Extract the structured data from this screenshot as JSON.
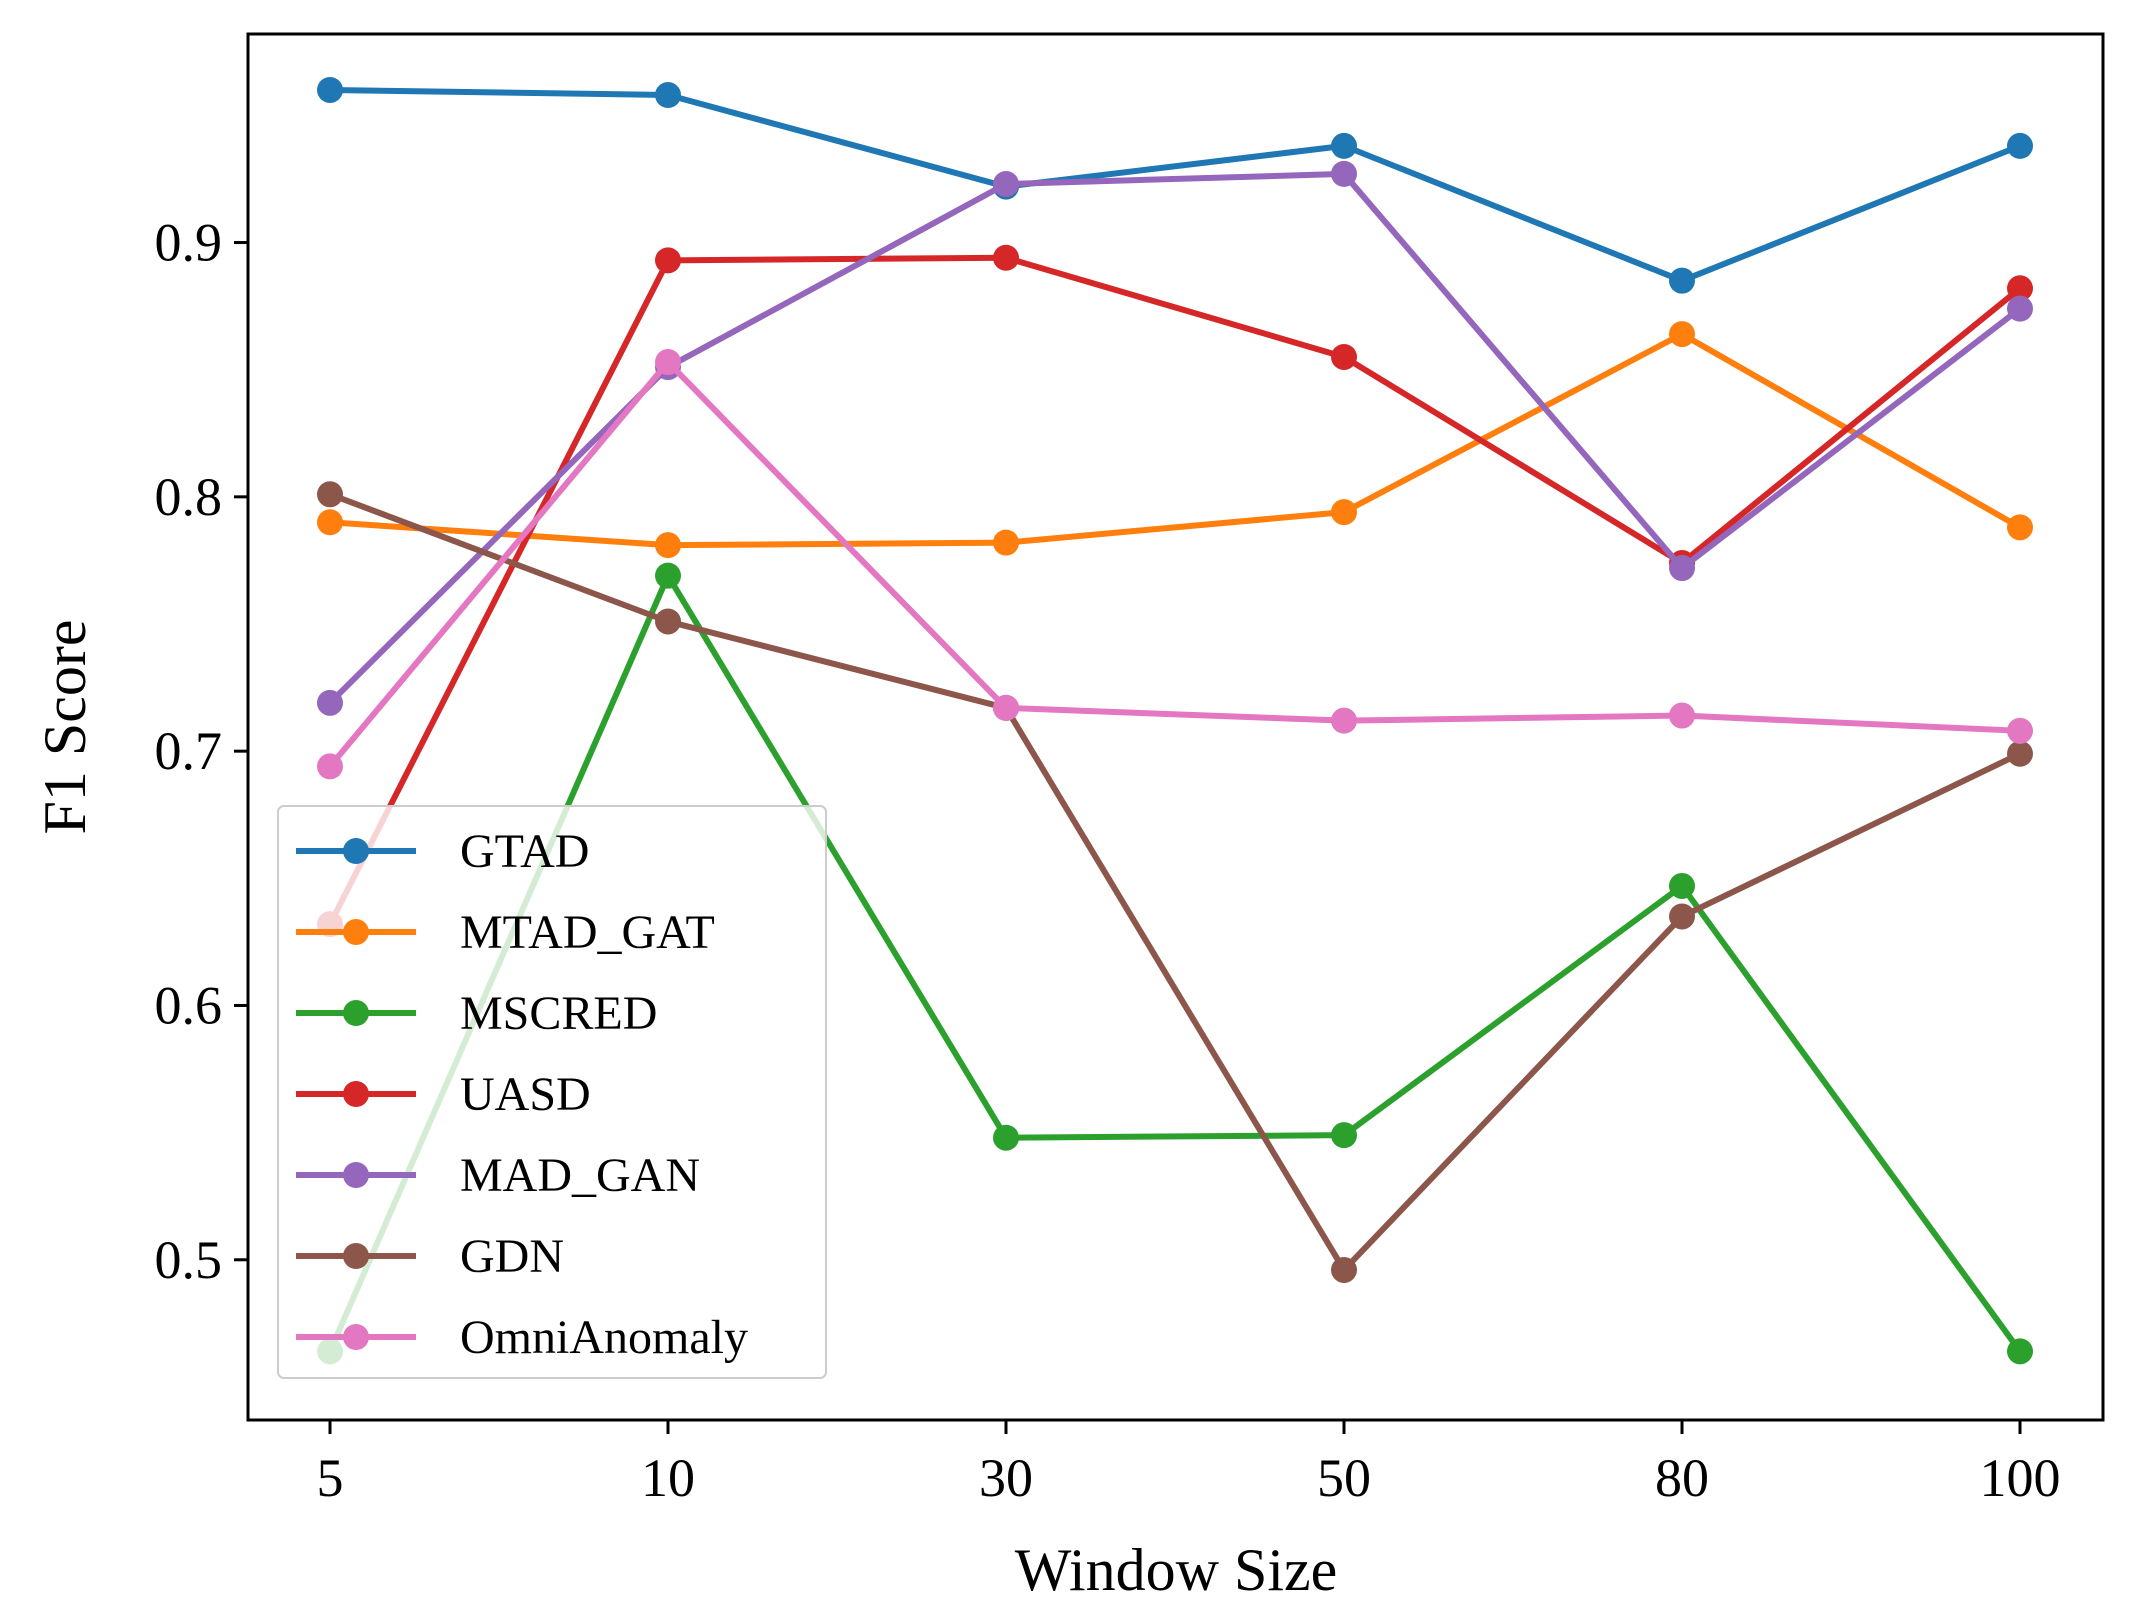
{
  "chart_data": {
    "type": "line",
    "title": "",
    "xlabel": "Window Size",
    "ylabel": "F1 Score",
    "categories": [
      "5",
      "10",
      "30",
      "50",
      "80",
      "100"
    ],
    "yticks": [
      "0.5",
      "0.6",
      "0.7",
      "0.8",
      "0.9"
    ],
    "ylim": [
      0.437,
      0.982
    ],
    "grid": false,
    "legend_position": "lower-left",
    "series": [
      {
        "name": "GTAD",
        "color": "#1f77b4",
        "values": [
          0.96,
          0.958,
          0.922,
          0.938,
          0.885,
          0.938
        ]
      },
      {
        "name": "MTAD_GAT",
        "color": "#ff7f0e",
        "values": [
          0.79,
          0.781,
          0.782,
          0.794,
          0.864,
          0.788
        ]
      },
      {
        "name": "MSCRED",
        "color": "#2ca02c",
        "values": [
          0.464,
          0.769,
          0.548,
          0.549,
          0.647,
          0.464
        ]
      },
      {
        "name": "UASD",
        "color": "#d62728",
        "values": [
          0.632,
          0.893,
          0.894,
          0.855,
          0.774,
          0.882
        ]
      },
      {
        "name": "MAD_GAN",
        "color": "#9467bd",
        "values": [
          0.719,
          0.851,
          0.923,
          0.927,
          0.772,
          0.874
        ]
      },
      {
        "name": "GDN",
        "color": "#8c564b",
        "values": [
          0.801,
          0.751,
          0.717,
          0.496,
          0.635,
          0.699
        ]
      },
      {
        "name": "OmniAnomaly",
        "color": "#e377c2",
        "values": [
          0.694,
          0.853,
          0.717,
          0.712,
          0.714,
          0.708
        ]
      }
    ]
  }
}
